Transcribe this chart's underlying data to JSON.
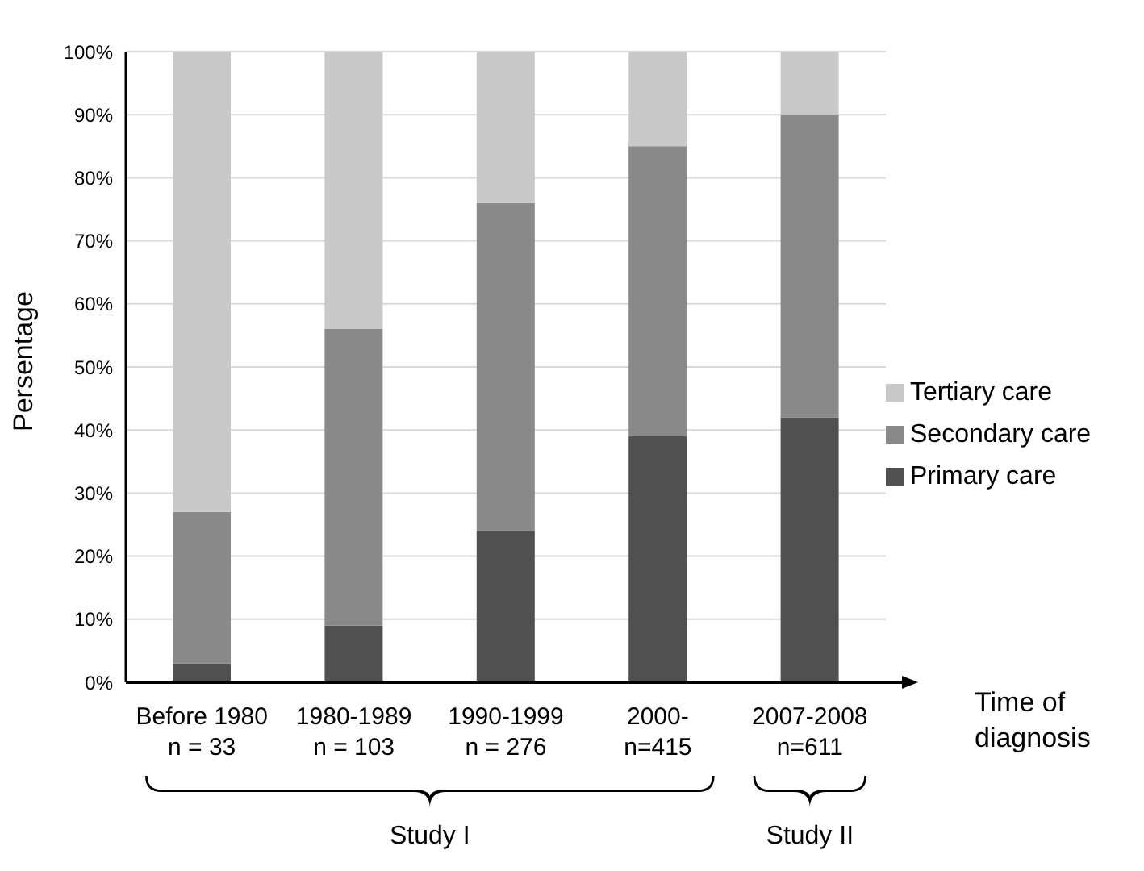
{
  "chart_data": {
    "type": "bar",
    "stacked": true,
    "categories": [
      "Before 1980\nn = 33",
      "1980-1989\nn = 103",
      "1990-1999\nn = 276",
      "2000-\nn=415",
      "2007-2008\nn=611"
    ],
    "series": [
      {
        "name": "Primary care",
        "color": "#505050",
        "values": [
          3,
          9,
          24,
          39,
          42
        ]
      },
      {
        "name": "Secondary care",
        "color": "#898989",
        "values": [
          24,
          47,
          52,
          46,
          48
        ]
      },
      {
        "name": "Tertiary care",
        "color": "#c8c8c8",
        "values": [
          73,
          44,
          24,
          15,
          10
        ]
      }
    ],
    "ylabel": "Persentage",
    "xlabel": "Time of diagnosis",
    "ylim": [
      0,
      100
    ],
    "yticks": [
      {
        "value": 0,
        "label": "0%"
      },
      {
        "value": 10,
        "label": "10%"
      },
      {
        "value": 20,
        "label": "20%"
      },
      {
        "value": 30,
        "label": "30%"
      },
      {
        "value": 40,
        "label": "40%"
      },
      {
        "value": 50,
        "label": "50%"
      },
      {
        "value": 60,
        "label": "60%"
      },
      {
        "value": 70,
        "label": "70%"
      },
      {
        "value": 80,
        "label": "80%"
      },
      {
        "value": 90,
        "label": "90%"
      },
      {
        "value": 100,
        "label": "100%"
      }
    ],
    "grid": "y",
    "legend": "right",
    "annotations": [
      "Study I",
      "Study II"
    ]
  }
}
